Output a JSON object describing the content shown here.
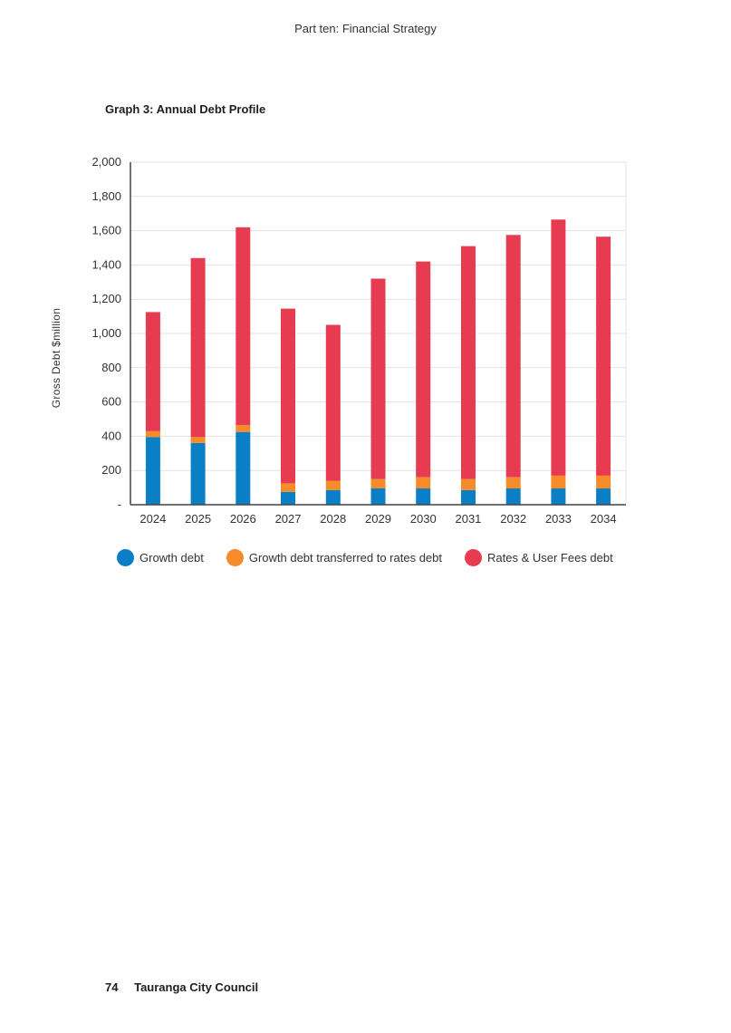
{
  "header": {
    "text": "Part ten: Financial Strategy"
  },
  "graph": {
    "title": "Graph 3: Annual Debt Profile"
  },
  "footer": {
    "page_number": "74",
    "publisher": "Tauranga City Council"
  },
  "colors": {
    "growth": "#0a7fc5",
    "transferred": "#f68b2a",
    "rates": "#e63b50",
    "grid": "#e2e2e2",
    "axis": "#444444"
  },
  "chart_data": {
    "type": "bar",
    "stacked": true,
    "title": "Graph 3: Annual Debt Profile",
    "xlabel": "",
    "ylabel": "Gross Debt $million",
    "ylim": [
      0,
      2000
    ],
    "y_ticks": [
      {
        "value": 0,
        "label": "-"
      },
      {
        "value": 200,
        "label": "200"
      },
      {
        "value": 400,
        "label": "400"
      },
      {
        "value": 600,
        "label": "600"
      },
      {
        "value": 800,
        "label": "800"
      },
      {
        "value": 1000,
        "label": "1,000"
      },
      {
        "value": 1200,
        "label": "1,200"
      },
      {
        "value": 1400,
        "label": "1,400"
      },
      {
        "value": 1600,
        "label": "1,600"
      },
      {
        "value": 1800,
        "label": "1,800"
      },
      {
        "value": 2000,
        "label": "2,000"
      }
    ],
    "grid": true,
    "legend_position": "bottom",
    "categories": [
      "2024",
      "2025",
      "2026",
      "2027",
      "2028",
      "2029",
      "2030",
      "2031",
      "2032",
      "2033",
      "2034"
    ],
    "series": [
      {
        "name": "Growth debt",
        "color": "#0a7fc5",
        "values": [
          395,
          360,
          425,
          75,
          85,
          95,
          95,
          85,
          95,
          95,
          95
        ]
      },
      {
        "name": "Growth debt transferred to rates debt",
        "color": "#f68b2a",
        "values": [
          35,
          35,
          40,
          50,
          55,
          55,
          65,
          65,
          65,
          75,
          75
        ]
      },
      {
        "name": "Rates & User Fees debt",
        "color": "#e63b50",
        "values": [
          695,
          1045,
          1155,
          1020,
          910,
          1170,
          1260,
          1360,
          1415,
          1495,
          1395
        ]
      }
    ]
  }
}
